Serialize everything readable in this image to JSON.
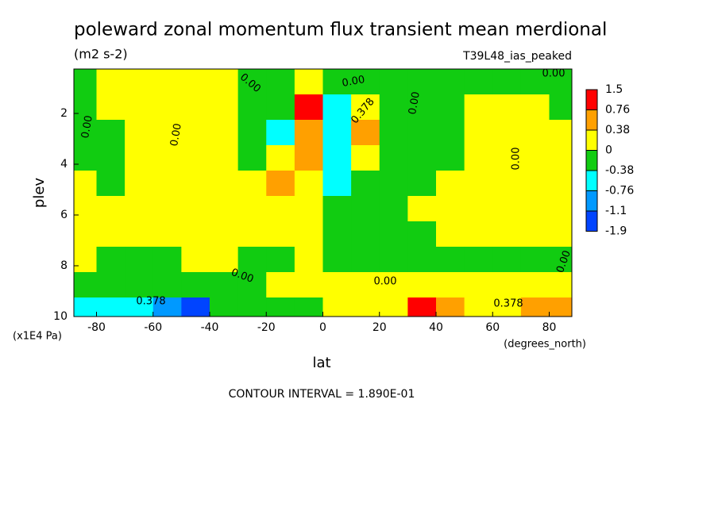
{
  "chart_data": {
    "type": "contour",
    "title": "poleward zonal momentum flux transient mean merdional",
    "subtitle": "(m2 s-2)",
    "dataset": "T39L48_ias_peaked",
    "xlabel": "lat",
    "xunit": "(degrees_north)",
    "ylabel": "plev",
    "yunit": "(x1E4 Pa)",
    "footer": "CONTOUR INTERVAL = 1.890E-01",
    "xlim": [
      -88,
      88
    ],
    "xticks": [
      -80,
      -60,
      -40,
      -20,
      0,
      20,
      40,
      60,
      80
    ],
    "ylim": [
      10,
      0.25
    ],
    "yticks": [
      2,
      4,
      6,
      8,
      10
    ],
    "x": [
      -85,
      -75,
      -65,
      -55,
      -45,
      -35,
      -25,
      -15,
      -5,
      5,
      15,
      25,
      35,
      45,
      55,
      65,
      75,
      85
    ],
    "y": [
      0.75,
      1.75,
      2.75,
      3.75,
      4.75,
      5.75,
      6.75,
      7.75,
      8.75,
      9.75
    ],
    "z": [
      [
        -0.2,
        0.2,
        0.2,
        0.2,
        0.2,
        0.2,
        -0.2,
        -0.2,
        0.2,
        -0.2,
        -0.2,
        -0.2,
        -0.2,
        -0.2,
        -0.2,
        -0.2,
        -0.2,
        -0.2
      ],
      [
        -0.2,
        0.2,
        0.2,
        0.2,
        0.2,
        0.2,
        -0.2,
        -0.2,
        1.0,
        -0.5,
        0.2,
        -0.2,
        -0.2,
        -0.2,
        0.2,
        0.2,
        0.2,
        -0.2
      ],
      [
        -0.2,
        -0.2,
        0.2,
        0.2,
        0.2,
        0.2,
        -0.2,
        -0.5,
        0.5,
        -0.5,
        0.5,
        -0.2,
        -0.2,
        -0.2,
        0.2,
        0.2,
        0.2,
        0.2
      ],
      [
        -0.2,
        -0.2,
        0.2,
        0.2,
        0.2,
        0.2,
        -0.2,
        0.2,
        0.5,
        -0.5,
        0.2,
        -0.2,
        -0.2,
        -0.2,
        0.2,
        0.2,
        0.2,
        0.2
      ],
      [
        0.2,
        -0.2,
        0.2,
        0.2,
        0.2,
        0.2,
        0.2,
        0.5,
        0.2,
        -0.5,
        -0.2,
        -0.2,
        -0.2,
        0.2,
        0.2,
        0.2,
        0.2,
        0.2
      ],
      [
        0.2,
        0.2,
        0.2,
        0.2,
        0.2,
        0.2,
        0.2,
        0.2,
        0.2,
        -0.2,
        -0.2,
        -0.2,
        0.2,
        0.2,
        0.2,
        0.2,
        0.2,
        0.2
      ],
      [
        0.2,
        0.2,
        0.2,
        0.2,
        0.2,
        0.2,
        0.2,
        0.2,
        0.2,
        -0.2,
        -0.2,
        -0.2,
        -0.2,
        0.2,
        0.2,
        0.2,
        0.2,
        0.2
      ],
      [
        0.2,
        -0.2,
        -0.2,
        -0.2,
        0.2,
        0.2,
        -0.2,
        -0.2,
        0.2,
        -0.2,
        -0.2,
        -0.2,
        -0.2,
        -0.2,
        -0.2,
        -0.2,
        -0.2,
        -0.2
      ],
      [
        -0.2,
        -0.2,
        -0.2,
        -0.2,
        -0.2,
        -0.2,
        -0.2,
        0.2,
        0.2,
        0.2,
        0.2,
        0.2,
        0.2,
        0.2,
        0.2,
        0.2,
        0.2,
        0.2
      ],
      [
        -0.5,
        -0.5,
        -0.5,
        -0.9,
        -1.3,
        -0.2,
        -0.2,
        -0.2,
        -0.2,
        0.2,
        0.2,
        0.2,
        1.0,
        0.5,
        0.2,
        0.2,
        0.5,
        0.5
      ]
    ],
    "levels": [
      1.5,
      0.76,
      0.38,
      0,
      -0.38,
      -0.76,
      -1.1,
      -1.9
    ],
    "colors": [
      "#ff0000",
      "#ffa000",
      "#ffff00",
      "#11cc11",
      "#00ffff",
      "#0099ff",
      "#0044ff"
    ],
    "contour_labels": [
      "0.00",
      "0.00",
      "0.00",
      "0.378",
      "0.00",
      "0.00",
      "0.00",
      "0.00",
      "0.00",
      "0.00",
      "0.378",
      "0.378",
      "0.00"
    ]
  }
}
